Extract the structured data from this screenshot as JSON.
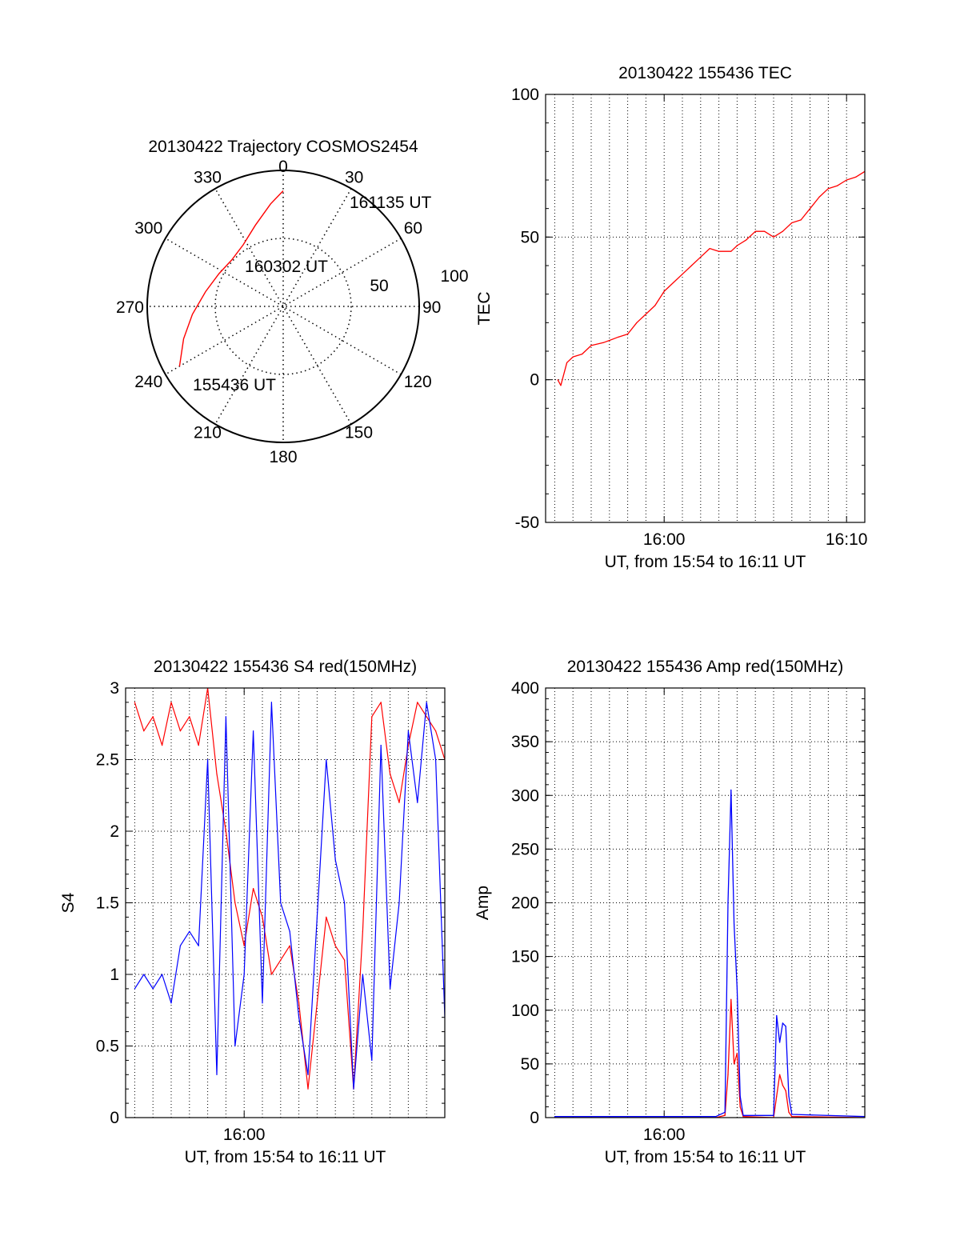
{
  "chart_data": [
    {
      "type": "polar",
      "title": "20130422 Trajectory COSMOS2454",
      "angle_labels": [
        "0",
        "30",
        "60",
        "90",
        "120",
        "150",
        "180",
        "210",
        "240",
        "270",
        "300",
        "330"
      ],
      "radius_labels": [
        "50",
        "100"
      ],
      "grid": true,
      "series": [
        {
          "color": "#ff0000",
          "points": [
            {
              "az": 240,
              "r": 88
            },
            {
              "az": 252,
              "r": 77
            },
            {
              "az": 265,
              "r": 67
            },
            {
              "az": 281,
              "r": 58
            },
            {
              "az": 297,
              "r": 53
            },
            {
              "az": 312,
              "r": 51
            },
            {
              "az": 327,
              "r": 54
            },
            {
              "az": 341,
              "r": 63
            },
            {
              "az": 353,
              "r": 76
            },
            {
              "az": 0,
              "r": 85
            }
          ]
        }
      ],
      "annotations": [
        {
          "text": "161135 UT",
          "az": 33,
          "r": 98
        },
        {
          "text": "160302 UT",
          "az": 315,
          "r": 40
        },
        {
          "text": "155436 UT",
          "az": 240,
          "r": 84
        }
      ]
    },
    {
      "type": "line",
      "title": "20130422 155436 TEC",
      "xlabel": "UT, from 15:54 to 16:11 UT",
      "ylabel": "TEC",
      "xlim": [
        "15:53:30",
        "16:11:00"
      ],
      "ylim": [
        -50,
        100
      ],
      "yticks": [
        "-50",
        "0",
        "50",
        "100"
      ],
      "xticks": [
        {
          "label": "16:00",
          "t": "16:00:00"
        },
        {
          "label": "16:10",
          "t": "16:10:00"
        }
      ],
      "grid": true,
      "series": [
        {
          "color": "#ff0000",
          "points": [
            [
              "15:54:10",
              0
            ],
            [
              "15:54:20",
              -2
            ],
            [
              "15:54:40",
              6
            ],
            [
              "15:55:00",
              8
            ],
            [
              "15:55:30",
              9
            ],
            [
              "15:56:00",
              12
            ],
            [
              "15:56:40",
              13
            ],
            [
              "15:57:30",
              15
            ],
            [
              "15:58:00",
              16
            ],
            [
              "15:58:30",
              20
            ],
            [
              "15:59:00",
              23
            ],
            [
              "15:59:30",
              26
            ],
            [
              "16:00:00",
              31
            ],
            [
              "16:00:30",
              34
            ],
            [
              "16:01:00",
              37
            ],
            [
              "16:01:30",
              40
            ],
            [
              "16:02:00",
              43
            ],
            [
              "16:02:30",
              46
            ],
            [
              "16:03:00",
              45
            ],
            [
              "16:03:40",
              45
            ],
            [
              "16:04:00",
              47
            ],
            [
              "16:04:30",
              49
            ],
            [
              "16:05:00",
              52
            ],
            [
              "16:05:30",
              52
            ],
            [
              "16:06:00",
              50
            ],
            [
              "16:06:30",
              52
            ],
            [
              "16:07:00",
              55
            ],
            [
              "16:07:30",
              56
            ],
            [
              "16:08:00",
              60
            ],
            [
              "16:08:30",
              64
            ],
            [
              "16:09:00",
              67
            ],
            [
              "16:09:30",
              68
            ],
            [
              "16:10:00",
              70
            ],
            [
              "16:10:30",
              71
            ],
            [
              "16:11:00",
              73
            ]
          ]
        }
      ]
    },
    {
      "type": "line",
      "title": "20130422 155436 S4 red(150MHz)",
      "xlabel": "UT, from 15:54 to 16:11 UT",
      "ylabel": "S4",
      "xlim": [
        "15:53:30",
        "16:11:00"
      ],
      "ylim": [
        0,
        3
      ],
      "yticks": [
        "0",
        "0.5",
        "1",
        "1.5",
        "2",
        "2.5",
        "3"
      ],
      "xticks": [
        {
          "label": "16:00",
          "t": "16:00:00"
        }
      ],
      "grid": true,
      "series": [
        {
          "color": "#ff0000",
          "points": [
            [
              "15:54:00",
              2.9
            ],
            [
              "15:54:30",
              2.7
            ],
            [
              "15:55:00",
              2.8
            ],
            [
              "15:55:30",
              2.6
            ],
            [
              "15:56:00",
              2.9
            ],
            [
              "15:56:30",
              2.7
            ],
            [
              "15:57:00",
              2.8
            ],
            [
              "15:57:30",
              2.6
            ],
            [
              "15:58:00",
              3.0
            ],
            [
              "15:58:30",
              2.4
            ],
            [
              "15:59:00",
              2.0
            ],
            [
              "15:59:30",
              1.5
            ],
            [
              "16:00:00",
              1.2
            ],
            [
              "16:00:30",
              1.6
            ],
            [
              "16:01:00",
              1.4
            ],
            [
              "16:01:30",
              1.0
            ],
            [
              "16:02:00",
              1.1
            ],
            [
              "16:02:30",
              1.2
            ],
            [
              "16:03:00",
              0.8
            ],
            [
              "16:03:30",
              0.2
            ],
            [
              "16:04:00",
              0.8
            ],
            [
              "16:04:30",
              1.4
            ],
            [
              "16:05:00",
              1.2
            ],
            [
              "16:05:30",
              1.1
            ],
            [
              "16:06:00",
              0.2
            ],
            [
              "16:06:30",
              1.3
            ],
            [
              "16:07:00",
              2.8
            ],
            [
              "16:07:30",
              2.9
            ],
            [
              "16:08:00",
              2.4
            ],
            [
              "16:08:30",
              2.2
            ],
            [
              "16:09:00",
              2.6
            ],
            [
              "16:09:30",
              2.9
            ],
            [
              "16:10:00",
              2.8
            ],
            [
              "16:10:30",
              2.7
            ],
            [
              "16:11:00",
              2.5
            ]
          ]
        },
        {
          "color": "#0000ff",
          "points": [
            [
              "15:54:00",
              0.9
            ],
            [
              "15:54:30",
              1.0
            ],
            [
              "15:55:00",
              0.9
            ],
            [
              "15:55:30",
              1.0
            ],
            [
              "15:56:00",
              0.8
            ],
            [
              "15:56:30",
              1.2
            ],
            [
              "15:57:00",
              1.3
            ],
            [
              "15:57:30",
              1.2
            ],
            [
              "15:58:00",
              2.5
            ],
            [
              "15:58:30",
              0.3
            ],
            [
              "15:59:00",
              2.8
            ],
            [
              "15:59:30",
              0.5
            ],
            [
              "16:00:00",
              1.0
            ],
            [
              "16:00:30",
              2.7
            ],
            [
              "16:01:00",
              0.8
            ],
            [
              "16:01:30",
              2.9
            ],
            [
              "16:02:00",
              1.5
            ],
            [
              "16:02:30",
              1.3
            ],
            [
              "16:03:00",
              0.7
            ],
            [
              "16:03:30",
              0.3
            ],
            [
              "16:04:00",
              1.4
            ],
            [
              "16:04:30",
              2.5
            ],
            [
              "16:05:00",
              1.8
            ],
            [
              "16:05:30",
              1.5
            ],
            [
              "16:06:00",
              0.2
            ],
            [
              "16:06:30",
              1.0
            ],
            [
              "16:07:00",
              0.4
            ],
            [
              "16:07:30",
              2.6
            ],
            [
              "16:08:00",
              0.9
            ],
            [
              "16:08:30",
              1.5
            ],
            [
              "16:09:00",
              2.7
            ],
            [
              "16:09:30",
              2.2
            ],
            [
              "16:10:00",
              2.9
            ],
            [
              "16:10:30",
              2.5
            ],
            [
              "16:11:00",
              0.7
            ]
          ]
        }
      ]
    },
    {
      "type": "line",
      "title": "20130422 155436 Amp red(150MHz)",
      "xlabel": "UT, from 15:54 to 16:11 UT",
      "ylabel": "Amp",
      "xlim": [
        "15:53:30",
        "16:11:00"
      ],
      "ylim": [
        0,
        400
      ],
      "yticks": [
        "0",
        "50",
        "100",
        "150",
        "200",
        "250",
        "300",
        "350",
        "400"
      ],
      "xticks": [
        {
          "label": "16:00",
          "t": "16:00:00"
        }
      ],
      "grid": true,
      "series": [
        {
          "color": "#ff0000",
          "points": [
            [
              "15:54:00",
              0
            ],
            [
              "16:02:50",
              0
            ],
            [
              "16:03:20",
              2
            ],
            [
              "16:03:30",
              40
            ],
            [
              "16:03:40",
              110
            ],
            [
              "16:03:50",
              50
            ],
            [
              "16:04:00",
              60
            ],
            [
              "16:04:10",
              10
            ],
            [
              "16:04:20",
              1
            ],
            [
              "16:06:00",
              0
            ],
            [
              "16:06:10",
              20
            ],
            [
              "16:06:20",
              40
            ],
            [
              "16:06:30",
              30
            ],
            [
              "16:06:40",
              25
            ],
            [
              "16:06:50",
              5
            ],
            [
              "16:07:00",
              1
            ],
            [
              "16:11:00",
              0
            ]
          ]
        },
        {
          "color": "#0000ff",
          "points": [
            [
              "15:54:00",
              1
            ],
            [
              "16:02:50",
              1
            ],
            [
              "16:03:20",
              5
            ],
            [
              "16:03:30",
              200
            ],
            [
              "16:03:40",
              305
            ],
            [
              "16:03:50",
              180
            ],
            [
              "16:04:00",
              120
            ],
            [
              "16:04:10",
              20
            ],
            [
              "16:04:20",
              2
            ],
            [
              "16:06:00",
              2
            ],
            [
              "16:06:10",
              95
            ],
            [
              "16:06:20",
              70
            ],
            [
              "16:06:30",
              88
            ],
            [
              "16:06:40",
              85
            ],
            [
              "16:06:50",
              20
            ],
            [
              "16:07:00",
              3
            ],
            [
              "16:11:00",
              1
            ]
          ]
        }
      ]
    }
  ]
}
